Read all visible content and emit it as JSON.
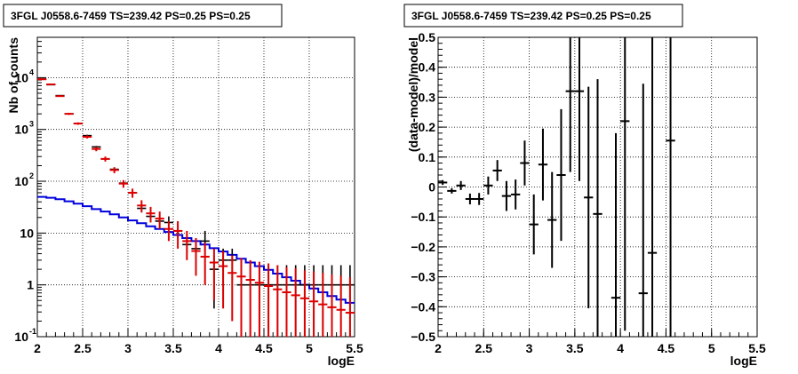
{
  "chart_data": [
    {
      "type": "line",
      "title": "3FGL J0558.6-7459 TS=239.42 PS=0.25 PS=0.25",
      "xlabel": "logE",
      "ylabel": "Nb of counts",
      "xlim": [
        2,
        5.5
      ],
      "ylim": [
        0.1,
        60000
      ],
      "yscale": "log",
      "grid": true,
      "x_ticks": [
        "2",
        "2.5",
        "3",
        "3.5",
        "4",
        "4.5",
        "5",
        "5.5"
      ],
      "y_ticks": [
        {
          "value": 0.1,
          "label": "10",
          "exp": "-1"
        },
        {
          "value": 1,
          "label": "1",
          "exp": ""
        },
        {
          "value": 10,
          "label": "10",
          "exp": ""
        },
        {
          "value": 100,
          "label": "10",
          "exp": "2"
        },
        {
          "value": 1000,
          "label": "10",
          "exp": "3"
        },
        {
          "value": 10000,
          "label": "10",
          "exp": "4"
        }
      ],
      "colors": {
        "data": "#000000",
        "model": "#dd0000",
        "component": "#0000dd"
      },
      "x": [
        2.05,
        2.15,
        2.25,
        2.35,
        2.45,
        2.55,
        2.65,
        2.75,
        2.85,
        2.95,
        3.05,
        3.15,
        3.25,
        3.35,
        3.45,
        3.55,
        3.65,
        3.75,
        3.85,
        3.95,
        4.05,
        4.15,
        4.25,
        4.35,
        4.45,
        4.55,
        4.65,
        4.75,
        4.85,
        4.95,
        5.05,
        5.15,
        5.25,
        5.35,
        5.45
      ],
      "series": [
        {
          "kind": "data",
          "values": [
            9400,
            7300,
            4500,
            2000,
            1300,
            760,
            460,
            270,
            170,
            92,
            60,
            30,
            21,
            17,
            16,
            11,
            6,
            5,
            7,
            2,
            3,
            3,
            1,
            1,
            1,
            1,
            1,
            1,
            1,
            1,
            1,
            1,
            1,
            1,
            1
          ],
          "lo": [
            9210,
            7140,
            4430,
            1950,
            1260,
            730,
            440,
            255,
            160,
            83,
            53,
            25,
            17,
            13,
            12,
            8,
            4,
            3.5,
            4.5,
            0.35,
            1,
            1.2,
            0.05,
            0.05,
            0.05,
            0.05,
            0.05,
            0.05,
            0.05,
            0.05,
            0.05,
            0.05,
            0.05,
            0.05,
            0.05
          ],
          "hi": [
            9590,
            7460,
            4570,
            2050,
            1340,
            790,
            480,
            285,
            180,
            102,
            68,
            36,
            26,
            22,
            21,
            15,
            9,
            8,
            11,
            3.6,
            5,
            5,
            2.4,
            2.4,
            2.4,
            2.4,
            2.4,
            2.4,
            2.4,
            2.4,
            2.4,
            2.4,
            2.4,
            2.4,
            2.4
          ]
        },
        {
          "kind": "model",
          "values": [
            9300,
            7400,
            4400,
            2000,
            1300,
            720,
            420,
            270,
            165,
            90,
            60,
            34,
            24,
            19,
            12,
            11,
            7,
            4.5,
            3.5,
            2.7,
            2.3,
            1.7,
            1.45,
            1.25,
            1.1,
            0.95,
            0.82,
            0.72,
            0.63,
            0.55,
            0.48,
            0.42,
            0.37,
            0.33,
            0.29
          ],
          "lo": [
            9110,
            7230,
            4270,
            1910,
            1230,
            670,
            380,
            240,
            143,
            75,
            48,
            25,
            16,
            12,
            7,
            5,
            3,
            1.5,
            1,
            0.5,
            0.35,
            0.2,
            0.1,
            0.1,
            0.1,
            0.1,
            0.1,
            0.1,
            0.1,
            0.1,
            0.1,
            0.1,
            0.1,
            0.1,
            0.1
          ],
          "hi": [
            9490,
            7570,
            4530,
            2090,
            1370,
            770,
            460,
            300,
            187,
            105,
            72,
            43,
            32,
            26,
            17,
            17,
            11,
            8,
            6.5,
            5,
            4.5,
            3.7,
            3.3,
            3,
            2.8,
            2.6,
            2.4,
            2.2,
            2.1,
            1.9,
            1.8,
            1.7,
            1.6,
            1.5,
            1.4
          ]
        },
        {
          "kind": "component",
          "values": [
            50,
            48,
            45,
            41,
            37,
            33,
            29,
            26,
            23,
            20,
            17.5,
            15.5,
            13.5,
            12,
            10.5,
            9.2,
            8,
            7,
            6,
            5.1,
            4.4,
            3.8,
            3.2,
            2.7,
            2.3,
            1.95,
            1.65,
            1.4,
            1.2,
            1.0,
            0.85,
            0.72,
            0.61,
            0.52,
            0.45
          ]
        }
      ]
    },
    {
      "type": "scatter",
      "title": "3FGL J0558.6-7459 TS=239.42 PS=0.25 PS=0.25",
      "xlabel": "logE",
      "ylabel": "(data-model)/model",
      "xlim": [
        2,
        5.5
      ],
      "ylim": [
        -0.5,
        0.5
      ],
      "grid": true,
      "x_ticks": [
        "2",
        "2.5",
        "3",
        "3.5",
        "4",
        "4.5",
        "5",
        "5.5"
      ],
      "y_ticks": [
        "−0.5",
        "−0.4",
        "−0.3",
        "−0.2",
        "−0.1",
        "0",
        "0.1",
        "0.2",
        "0.3",
        "0.4",
        "0.5"
      ],
      "points": [
        {
          "x": 2.05,
          "y": 0.015,
          "err": 0.008
        },
        {
          "x": 2.15,
          "y": -0.013,
          "err": 0.009
        },
        {
          "x": 2.25,
          "y": 0.005,
          "err": 0.015
        },
        {
          "x": 2.35,
          "y": -0.04,
          "err": 0.018
        },
        {
          "x": 2.45,
          "y": -0.04,
          "err": 0.02
        },
        {
          "x": 2.55,
          "y": 0.005,
          "err": 0.03
        },
        {
          "x": 2.65,
          "y": 0.055,
          "err": 0.035
        },
        {
          "x": 2.75,
          "y": -0.03,
          "err": 0.05
        },
        {
          "x": 2.85,
          "y": -0.025,
          "err": 0.05
        },
        {
          "x": 2.95,
          "y": 0.08,
          "err": 0.075
        },
        {
          "x": 3.05,
          "y": -0.125,
          "err": 0.1
        },
        {
          "x": 3.15,
          "y": 0.075,
          "err": 0.12
        },
        {
          "x": 3.25,
          "y": -0.11,
          "err": 0.16
        },
        {
          "x": 3.35,
          "y": 0.04,
          "err": 0.22
        },
        {
          "x": 3.45,
          "y": 0.32,
          "err": 0.27
        },
        {
          "x": 3.55,
          "y": 0.32,
          "err": 0.3
        },
        {
          "x": 3.65,
          "y": -0.035,
          "err": 0.37
        },
        {
          "x": 3.75,
          "y": -0.09,
          "err": 0.45
        },
        {
          "x": 3.95,
          "y": -0.37,
          "err": 0.55
        },
        {
          "x": 4.05,
          "y": 0.22,
          "err": 0.7
        },
        {
          "x": 4.25,
          "y": -0.355,
          "err": 0.7
        },
        {
          "x": 4.35,
          "y": -0.22,
          "err": 0.8
        },
        {
          "x": 4.55,
          "y": 0.155,
          "err": 0.9
        }
      ]
    }
  ]
}
